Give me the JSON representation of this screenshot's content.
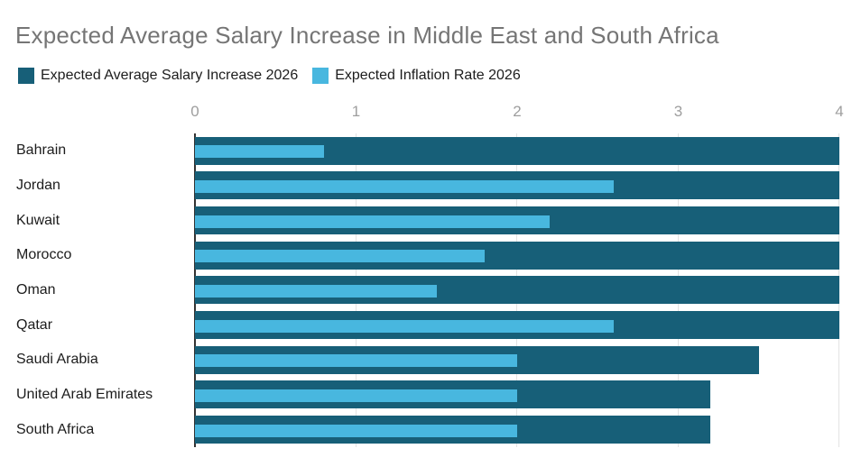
{
  "chart_data": {
    "type": "bar",
    "orientation": "horizontal",
    "title": "Expected Average Salary Increase in Middle East and South Africa",
    "categories": [
      "Bahrain",
      "Jordan",
      "Kuwait",
      "Morocco",
      "Oman",
      "Qatar",
      "Saudi Arabia",
      "United Arab Emirates",
      "South Africa"
    ],
    "series": [
      {
        "name": "Expected Average Salary Increase 2026",
        "color": "#175f78",
        "values": [
          4.0,
          4.0,
          4.0,
          4.0,
          4.0,
          4.0,
          3.5,
          3.2,
          3.2
        ]
      },
      {
        "name": "Expected Inflation Rate 2026",
        "color": "#48b7df",
        "values": [
          0.8,
          2.6,
          2.2,
          1.8,
          1.5,
          2.6,
          2.0,
          2.0,
          2.0
        ]
      }
    ],
    "xlabel": "",
    "ylabel": "",
    "xlim": [
      0,
      4
    ],
    "x_ticks": [
      "0",
      "1",
      "2",
      "3",
      "4"
    ],
    "grid": true,
    "legend_position": "top-left"
  },
  "colors": {
    "title_text": "#757575",
    "legend_text": "#1c1c1c",
    "category_text": "#1c1c1c",
    "axis_tick_text": "#9e9e9e",
    "gridline": "#e3e3e3",
    "axis_line": "#333333",
    "background": "#ffffff"
  }
}
